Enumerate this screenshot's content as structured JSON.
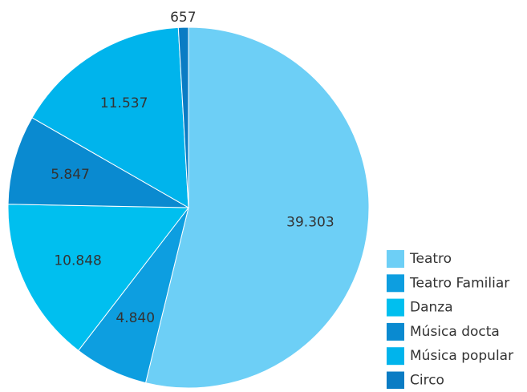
{
  "chart_data": {
    "type": "pie",
    "categories": [
      "Teatro",
      "Teatro Familiar",
      "Danza",
      "Música docta",
      "Música popular",
      "Circo"
    ],
    "values": [
      39303,
      4840,
      10848,
      5847,
      11537,
      657
    ],
    "value_labels": [
      "39.303",
      "4.840",
      "10.848",
      "5.847",
      "11.537",
      "657"
    ],
    "colors": [
      "#6dcff6",
      "#0d9ee0",
      "#00bfef",
      "#0a8ad0",
      "#00b4ec",
      "#0a7cc4"
    ],
    "legend": "right"
  }
}
